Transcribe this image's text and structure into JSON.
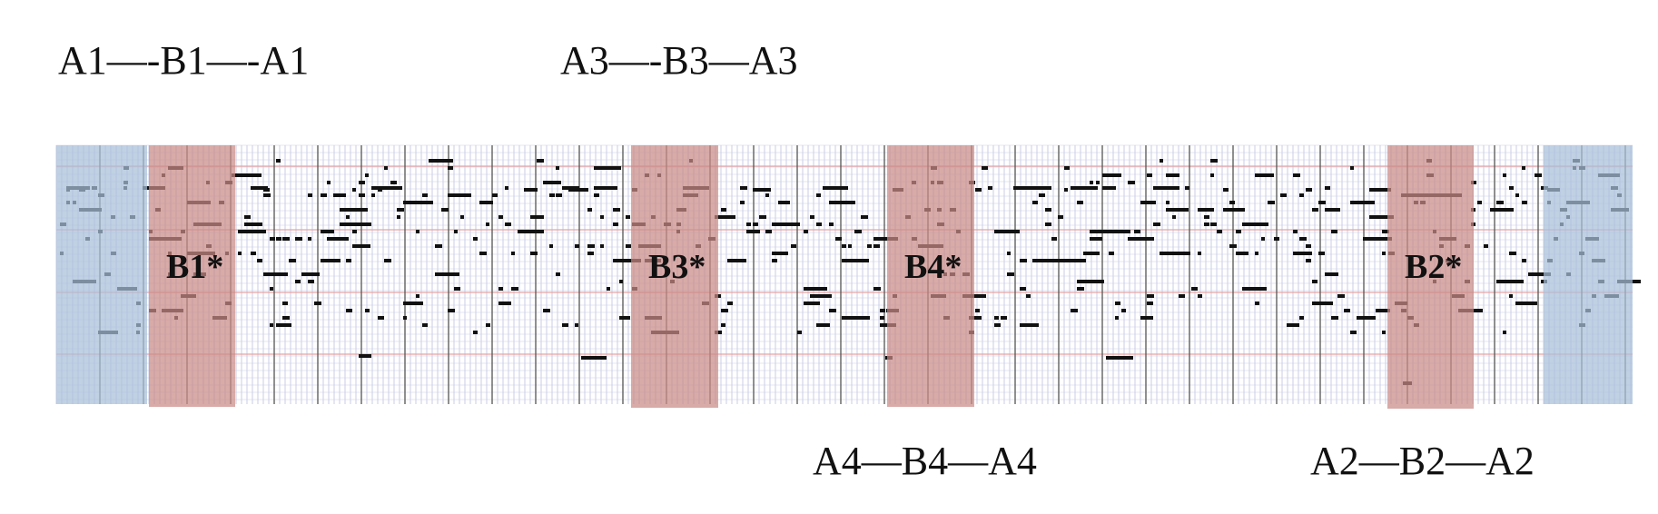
{
  "labels": {
    "top_left": "A1—-B1—-A1",
    "top_mid": "A3—-B3—A3",
    "bottom_mid": "A4—B4—A4",
    "bottom_right": "A2—B2—A2"
  },
  "regions": [
    {
      "label": "",
      "kind": "blue"
    },
    {
      "label": "B1*",
      "kind": "red"
    },
    {
      "label": "B3*",
      "kind": "red"
    },
    {
      "label": "B4*",
      "kind": "red"
    },
    {
      "label": "B2*",
      "kind": "red"
    },
    {
      "label": "",
      "kind": "blue"
    }
  ],
  "colors": {
    "blue_region": "#a9bfd9",
    "red_region": "#c98a86",
    "grid_minor": "#c9cde6",
    "grid_major": "#555555",
    "pitch_line": "#e8a3a3",
    "note": "#111111"
  }
}
